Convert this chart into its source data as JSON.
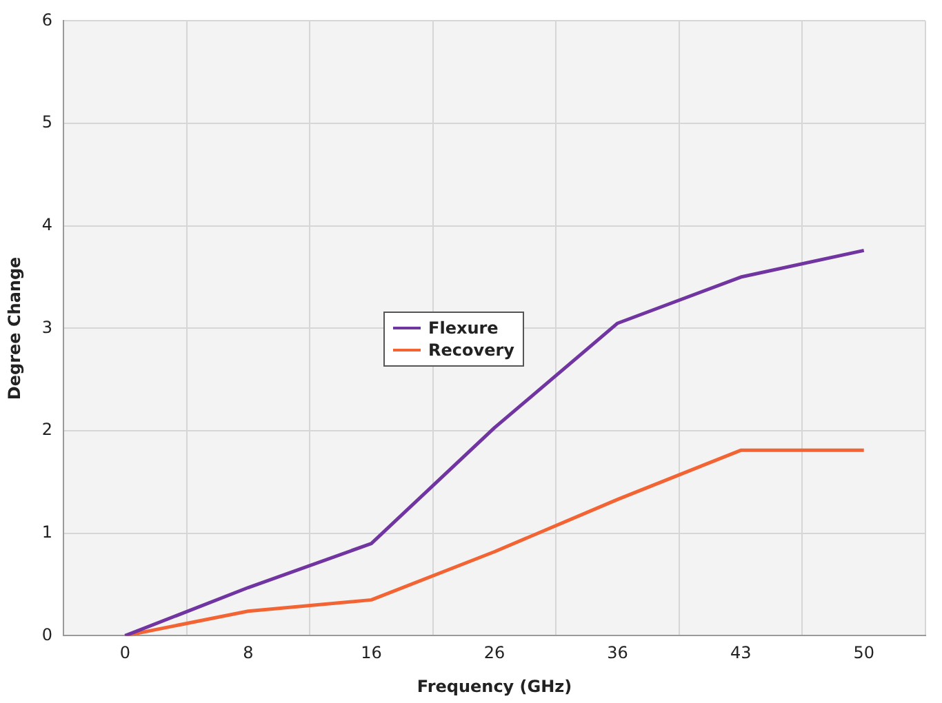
{
  "chart_data": {
    "type": "line",
    "xlabel": "Frequency (GHz)",
    "ylabel": "Degree Change",
    "categories": [
      "0",
      "8",
      "16",
      "26",
      "36",
      "43",
      "50"
    ],
    "series": [
      {
        "name": "Flexure",
        "color": "#7035a0",
        "values": [
          0,
          0.47,
          0.9,
          2.03,
          3.05,
          3.5,
          3.76
        ]
      },
      {
        "name": "Recovery",
        "color": "#f26433",
        "values": [
          0,
          0.24,
          0.35,
          0.82,
          1.33,
          1.81,
          1.81
        ]
      }
    ],
    "ylim": [
      0,
      6
    ],
    "yticks": [
      0,
      1,
      2,
      3,
      4,
      5,
      6
    ],
    "grid": true,
    "legend": "center",
    "marker": "none",
    "line_style": "solid"
  }
}
